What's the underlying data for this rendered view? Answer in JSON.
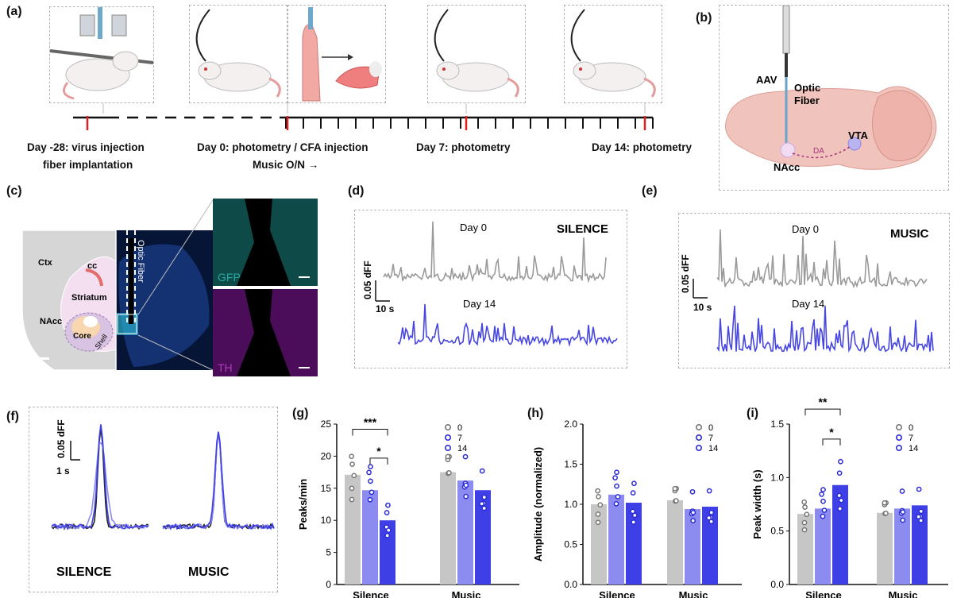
{
  "panels": {
    "a": "(a)",
    "b": "(b)",
    "c": "(c)",
    "d": "(d)",
    "e": "(e)",
    "f": "(f)",
    "g": "(g)",
    "h": "(h)",
    "i": "(i)"
  },
  "timeline": {
    "label1_line1": "Day -28: virus injection",
    "label1_line2": "fiber implantation",
    "label2_line1": "Day 0: photometry / CFA injection",
    "label2_line2": "Music O/N →",
    "label3": "Day 7: photometry",
    "label4": "Day 14: photometry"
  },
  "brain_schematic": {
    "aav": "AAV",
    "optic1": "Optic",
    "optic2": "Fiber",
    "vta": "VTA",
    "da": "DA",
    "nacc": "NAcc"
  },
  "histology": {
    "ctx": "Ctx",
    "cc": "cc",
    "striatum": "Striatum",
    "nacc": "NAcc",
    "core": "Core",
    "shell": "Shell",
    "fiber": "Optic Fiber",
    "gfp": "GFP",
    "th": "TH"
  },
  "traces": {
    "silence": {
      "title": "SILENCE",
      "day0": "Day 0",
      "day14": "Day 14",
      "scale_y": "0.05 dFF",
      "scale_x": "10 s"
    },
    "music": {
      "title": "MUSIC",
      "day0": "Day 0",
      "day14": "Day 14",
      "scale_y": "0.05 dFF",
      "scale_x": "10 s"
    }
  },
  "avg_traces": {
    "scale_y": "0.05 dFF",
    "scale_x": "1 s",
    "silence": "SILENCE",
    "music": "MUSIC"
  },
  "colors": {
    "day0": "#c6c6c6",
    "day7": "#8b8bf0",
    "day14": "#3f3fe6",
    "trace_day0": "#9a9a9a",
    "trace_day14": "#4747e0"
  },
  "chart_data": [
    {
      "type": "bar",
      "title": "(g)",
      "ylabel": "Peaks/min",
      "ylim": [
        0,
        25
      ],
      "yticks": [
        "0",
        "5",
        "10",
        "15",
        "20",
        "25"
      ],
      "categories": [
        "Silence",
        "Music"
      ],
      "legend": [
        "0",
        "7",
        "14"
      ],
      "series": [
        {
          "name": "0",
          "values": [
            17.1,
            17.5
          ]
        },
        {
          "name": "7",
          "values": [
            14.7,
            16.2
          ]
        },
        {
          "name": "14",
          "values": [
            10.0,
            14.7
          ]
        }
      ],
      "significance": [
        {
          "label": "***"
        },
        {
          "label": "*"
        }
      ]
    },
    {
      "type": "bar",
      "title": "(h)",
      "ylabel": "Amplitude (normalized)",
      "ylim": [
        0,
        2
      ],
      "yticks": [
        "0.0",
        "0.5",
        "1.0",
        "1.5",
        "2.0"
      ],
      "categories": [
        "Silence",
        "Music"
      ],
      "legend": [
        "0",
        "7",
        "14"
      ],
      "series": [
        {
          "name": "0",
          "values": [
            1.0,
            1.05
          ]
        },
        {
          "name": "7",
          "values": [
            1.12,
            0.94
          ]
        },
        {
          "name": "14",
          "values": [
            1.02,
            0.97
          ]
        }
      ]
    },
    {
      "type": "bar",
      "title": "(i)",
      "ylabel": "Peak width (s)",
      "ylim": [
        0,
        1.5
      ],
      "yticks": [
        "0.0",
        "0.5",
        "1.0",
        "1.5"
      ],
      "categories": [
        "Silence",
        "Music"
      ],
      "legend": [
        "0",
        "7",
        "14"
      ],
      "series": [
        {
          "name": "0",
          "values": [
            0.66,
            0.67
          ]
        },
        {
          "name": "7",
          "values": [
            0.71,
            0.71
          ]
        },
        {
          "name": "14",
          "values": [
            0.93,
            0.74
          ]
        }
      ],
      "significance": [
        {
          "label": "**"
        },
        {
          "label": "*"
        }
      ]
    }
  ]
}
